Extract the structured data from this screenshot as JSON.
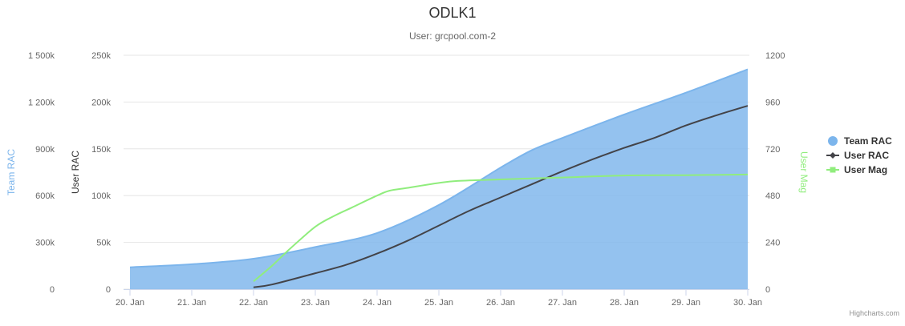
{
  "chart_data": {
    "type": "line",
    "title": "ODLK1",
    "subtitle": "User: grcpool.com-2",
    "x_categories": [
      "20. Jan",
      "21. Jan",
      "22. Jan",
      "23. Jan",
      "24. Jan",
      "25. Jan",
      "26. Jan",
      "27. Jan",
      "28. Jan",
      "29. Jan",
      "30. Jan"
    ],
    "x_range": [
      0,
      10
    ],
    "axes": [
      {
        "id": "team",
        "title": "Team RAC",
        "position": "left-outer",
        "range": [
          0,
          1500000
        ],
        "ticks": [
          "0",
          "300k",
          "600k",
          "900k",
          "1 200k",
          "1 500k"
        ],
        "color": "#7cb5ec"
      },
      {
        "id": "user",
        "title": "User RAC",
        "position": "left-inner",
        "range": [
          0,
          250000
        ],
        "ticks": [
          "0",
          "50k",
          "100k",
          "150k",
          "200k",
          "250k"
        ],
        "color": "#434348"
      },
      {
        "id": "mag",
        "title": "User Mag",
        "position": "right",
        "range": [
          0,
          1200
        ],
        "ticks": [
          "0",
          "240",
          "480",
          "720",
          "960",
          "1200"
        ],
        "color": "#90ed7d"
      }
    ],
    "grid": true,
    "legend_position": "right",
    "series": [
      {
        "name": "Team RAC",
        "type": "area",
        "axis": "team",
        "color": "#7cb5ec",
        "points": [
          [
            0,
            140000
          ],
          [
            1,
            160000
          ],
          [
            2,
            195000
          ],
          [
            3,
            270000
          ],
          [
            4,
            360000
          ],
          [
            5,
            540000
          ],
          [
            6,
            780000
          ],
          [
            6.5,
            890000
          ],
          [
            7,
            970000
          ],
          [
            8,
            1120000
          ],
          [
            9,
            1260000
          ],
          [
            10,
            1410000
          ]
        ]
      },
      {
        "name": "User RAC",
        "type": "line",
        "axis": "user",
        "color": "#434348",
        "points": [
          [
            2,
            2000
          ],
          [
            2.3,
            5000
          ],
          [
            3,
            17000
          ],
          [
            3.5,
            26000
          ],
          [
            4,
            38000
          ],
          [
            4.5,
            52000
          ],
          [
            5,
            68000
          ],
          [
            5.5,
            84000
          ],
          [
            6,
            98000
          ],
          [
            6.5,
            112000
          ],
          [
            7,
            126000
          ],
          [
            7.5,
            139000
          ],
          [
            8,
            151000
          ],
          [
            8.5,
            162000
          ],
          [
            9,
            175000
          ],
          [
            9.5,
            186000
          ],
          [
            10,
            196000
          ]
        ]
      },
      {
        "name": "User Mag",
        "type": "line",
        "axis": "mag",
        "color": "#90ed7d",
        "points": [
          [
            2,
            40
          ],
          [
            2.3,
            120
          ],
          [
            2.6,
            210
          ],
          [
            3,
            320
          ],
          [
            3.3,
            375
          ],
          [
            3.6,
            420
          ],
          [
            4,
            480
          ],
          [
            4.2,
            505
          ],
          [
            4.5,
            520
          ],
          [
            5,
            545
          ],
          [
            5.3,
            555
          ],
          [
            6,
            563
          ],
          [
            7,
            573
          ],
          [
            8,
            583
          ],
          [
            9,
            585
          ],
          [
            10,
            588
          ]
        ]
      }
    ],
    "credits": "Highcharts.com"
  }
}
